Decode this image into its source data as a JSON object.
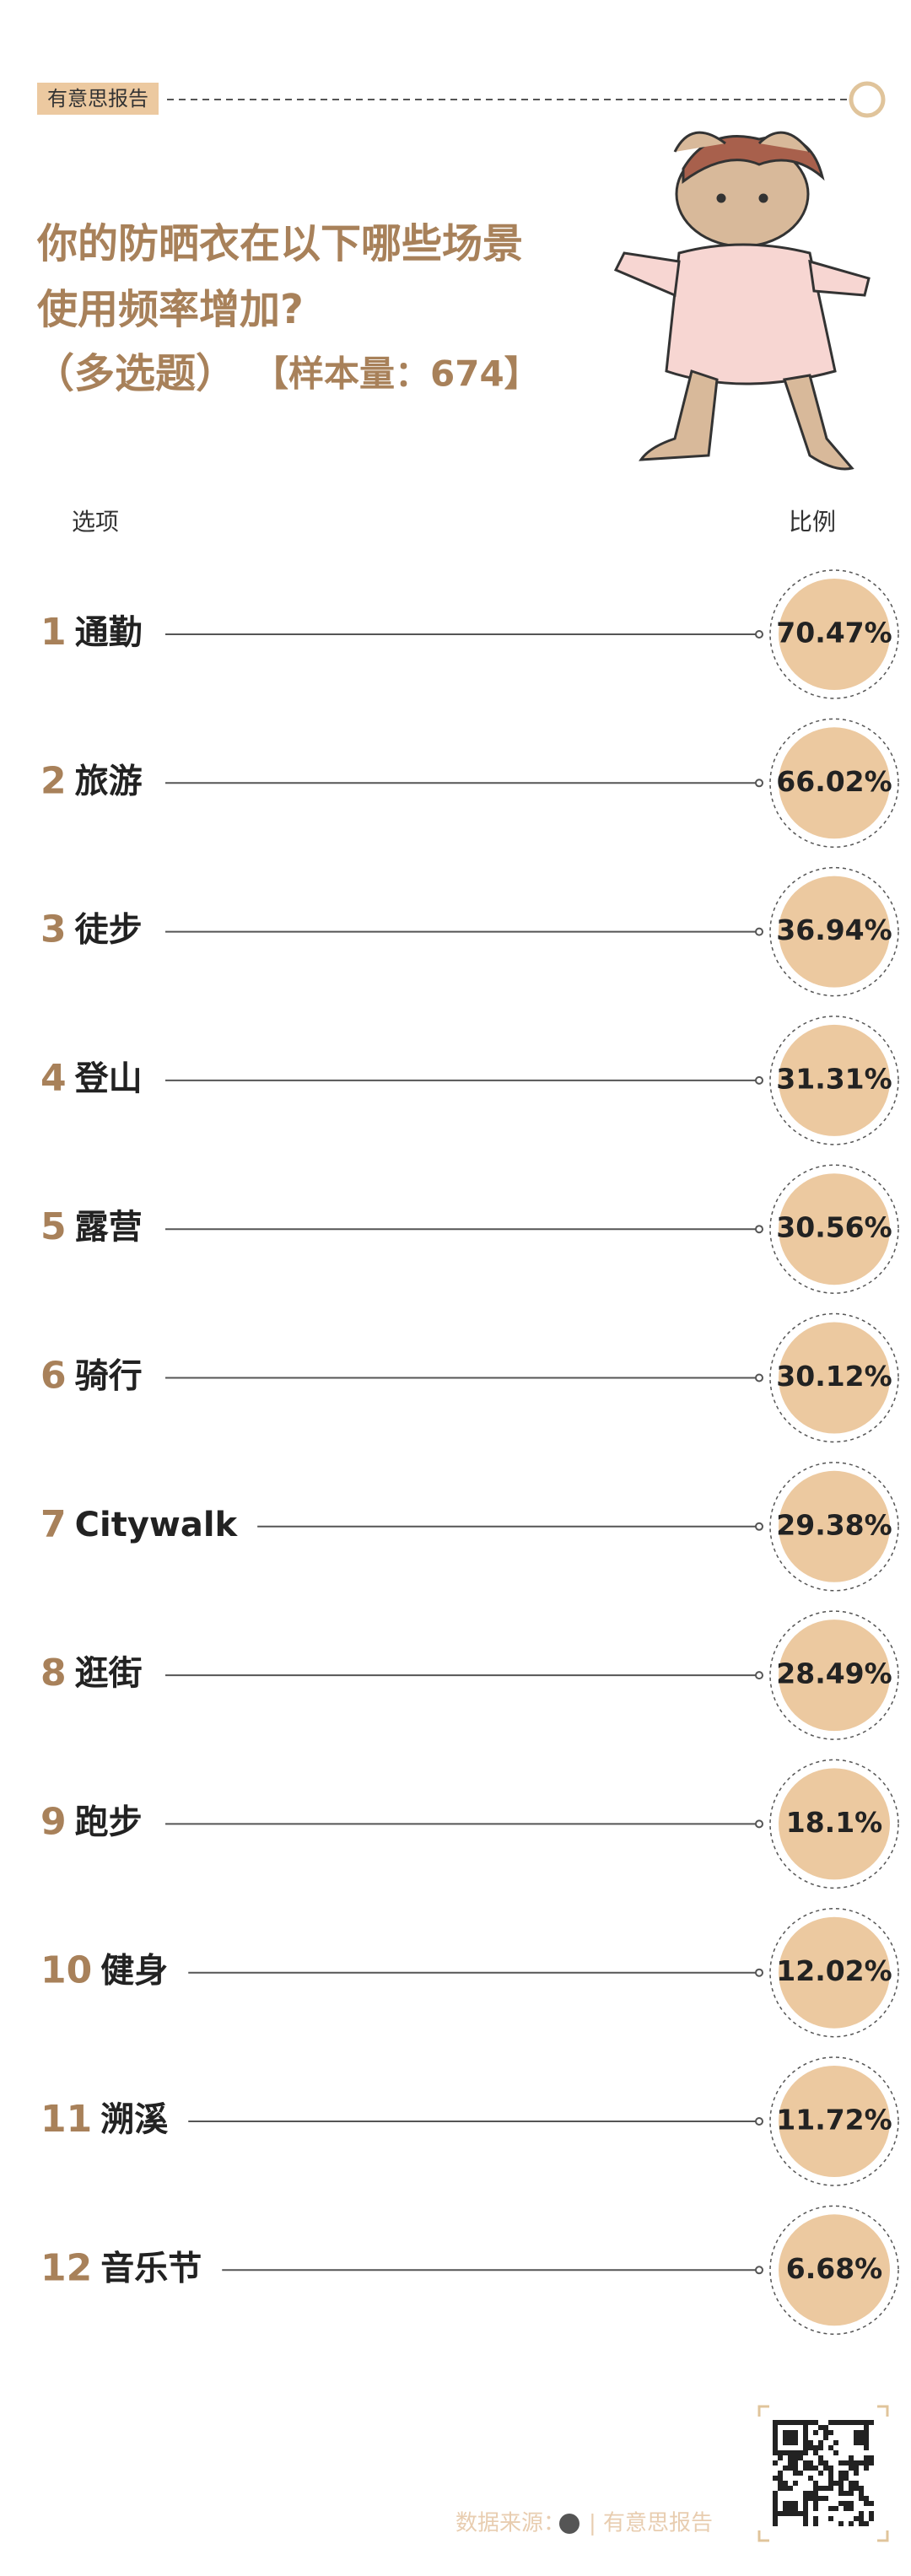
{
  "header": {
    "tag": "有意思报告",
    "title_lines": [
      "你的防晒衣在以下哪些场景",
      "使用频率增加?"
    ],
    "subtitle": "（多选题）",
    "sample": "【样本量：674】"
  },
  "columns": [
    "选项",
    "比例"
  ],
  "items": [
    {
      "rank": 1,
      "label": "通勤",
      "value": "70.47%"
    },
    {
      "rank": 2,
      "label": "旅游",
      "value": "66.02%"
    },
    {
      "rank": 3,
      "label": "徒步",
      "value": "36.94%"
    },
    {
      "rank": 4,
      "label": "登山",
      "value": "31.31%"
    },
    {
      "rank": 5,
      "label": "露营",
      "value": "30.56%"
    },
    {
      "rank": 6,
      "label": "骑行",
      "value": "30.12%"
    },
    {
      "rank": 7,
      "label": "Citywalk",
      "value": "29.38%"
    },
    {
      "rank": 8,
      "label": "逛街",
      "value": "28.49%"
    },
    {
      "rank": 9,
      "label": "跑步",
      "value": "18.1%"
    },
    {
      "rank": 10,
      "label": "健身",
      "value": "12.02%"
    },
    {
      "rank": 11,
      "label": "溯溪",
      "value": "11.72%"
    },
    {
      "rank": 12,
      "label": "音乐节",
      "value": "6.68%"
    }
  ],
  "footer": {
    "source": "数据来源：",
    "brand": "| 有意思报告"
  }
}
